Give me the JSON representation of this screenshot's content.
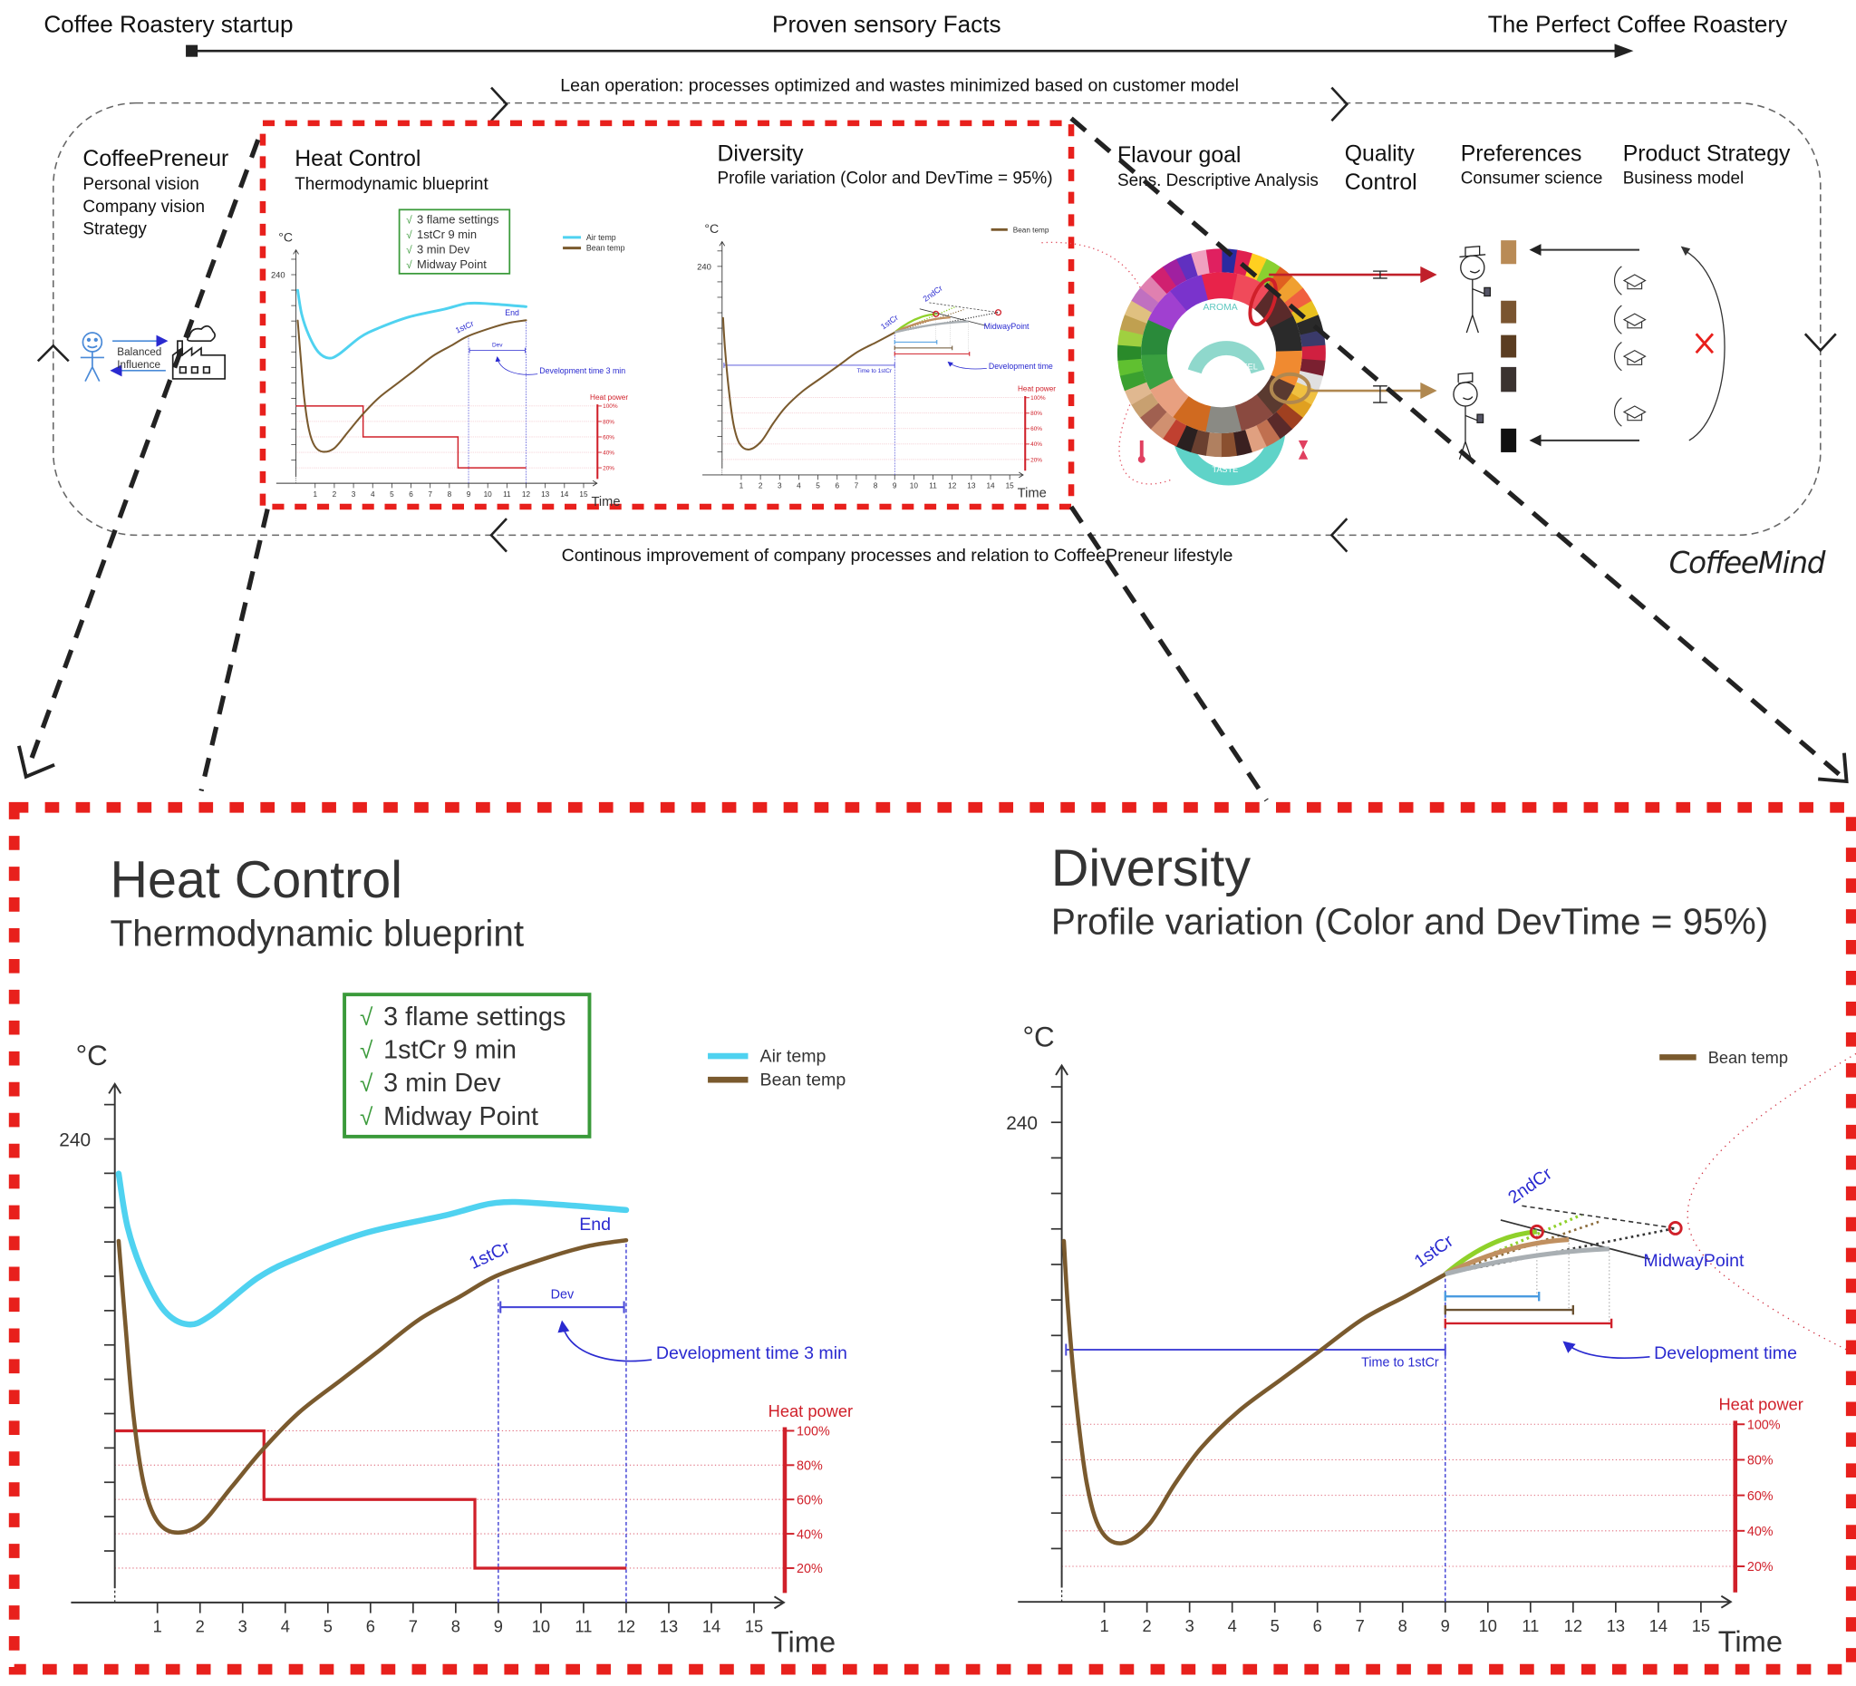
{
  "header": {
    "left": "Coffee Roastery startup",
    "center": "Proven sensory Facts",
    "right": "The Perfect Coffee Roastery"
  },
  "loop": {
    "top": "Lean operation: processes optimized and wastes minimized based on customer model",
    "bottom": "Continous improvement of company processes and relation to CoffeePreneur lifestyle"
  },
  "coffeepreneur": {
    "title": "CoffeePreneur",
    "lines": [
      "Personal vision",
      "Company vision",
      "Strategy"
    ],
    "influence": [
      "Balanced",
      "Influence"
    ]
  },
  "heat": {
    "title": "Heat Control",
    "subtitle": "Thermodynamic blueprint"
  },
  "diversity": {
    "title": "Diversity",
    "subtitle": "Profile variation (Color and DevTime = 95%)"
  },
  "flavour": {
    "title": "Flavour goal",
    "subtitle": "Sens. Descriptive Analysis"
  },
  "quality": {
    "title": [
      "Quality",
      "Control"
    ]
  },
  "preferences": {
    "title": "Preferences",
    "subtitle": "Consumer science"
  },
  "product": {
    "title": "Product Strategy",
    "subtitle": "Business model"
  },
  "wheel": {
    "labels": {
      "aroma": "AROMA",
      "mouthfeel": "MOUTHFEEL",
      "taste": "TASTE"
    },
    "inner_colors": [
      "#7a33cc",
      "#e8234a",
      "#f04a5a",
      "#5a2a2a",
      "#2a2a2a",
      "#f08a30",
      "#5a3a30",
      "#8a4a40",
      "#8a8a84",
      "#d06a20",
      "#e8a080",
      "#3aa040",
      "#2a8a3a",
      "#a040d0"
    ],
    "outer_colors": [
      "#2a2aa0",
      "#e02050",
      "#ffd020",
      "#8ad030",
      "#e06020",
      "#f0a030",
      "#f06040",
      "#e8c020",
      "#2a2a2a",
      "#3a3a6a",
      "#d02040",
      "#7a2030",
      "#e0e0e0",
      "#f0c040",
      "#e0a020",
      "#a04020",
      "#5a2a2a",
      "#c07050",
      "#e0a080",
      "#3a2020",
      "#8a5030",
      "#b08060",
      "#6a4030",
      "#2a2020",
      "#c04030",
      "#d09070",
      "#a06050",
      "#c8a070",
      "#e0b890",
      "#3aa030",
      "#60c030",
      "#2a8a2a",
      "#a0d040",
      "#c0a050",
      "#e0c080",
      "#c070c0",
      "#e080b0",
      "#d02070",
      "#a020a0",
      "#6030c0",
      "#f0a0c0",
      "#e02060"
    ],
    "taste_color": "#5fd3c8"
  },
  "swatches": [
    "#b98b56",
    "#7a5530",
    "#5b3d21",
    "#3b3330",
    "#111111"
  ],
  "logo": "CoffeeMind",
  "colors": {
    "frame_red": "#e8201c",
    "check_green": "#3a9a3a",
    "annotation_blue": "#2a2ad0",
    "heat_red": "#d0202a"
  },
  "chart_data": [
    {
      "type": "line",
      "title": "Heat Control",
      "ylabel": "°C",
      "xlabel": "Time",
      "y_tick_label": "240",
      "x_ticks": [
        1,
        2,
        3,
        4,
        5,
        6,
        7,
        8,
        9,
        10,
        11,
        12,
        13,
        14,
        15
      ],
      "xlim": [
        0,
        15.5
      ],
      "ylim": [
        105,
        250
      ],
      "checklist": [
        "3 flame settings",
        "1stCr 9 min",
        "3 min Dev",
        "Midway Point"
      ],
      "check_mark": "√",
      "series": [
        {
          "name": "Air temp",
          "color": "#4fd2f0",
          "points": [
            [
              0.09,
              229.9
            ],
            [
              0.3,
              214.3
            ],
            [
              0.67,
              200.8
            ],
            [
              1.16,
              190
            ],
            [
              1.71,
              186
            ],
            [
              2.25,
              188.6
            ],
            [
              3.35,
              199.5
            ],
            [
              4.32,
              205.5
            ],
            [
              5.91,
              212.7
            ],
            [
              7.74,
              217.7
            ],
            [
              8.95,
              221.4
            ],
            [
              10.17,
              221.1
            ],
            [
              12.0,
              219.3
            ]
          ]
        },
        {
          "name": "Bean temp",
          "color": "#7a5a2e",
          "points": [
            [
              0.09,
              210.3
            ],
            [
              0.24,
              187.3
            ],
            [
              0.43,
              160.3
            ],
            [
              0.67,
              140
            ],
            [
              0.97,
              129.2
            ],
            [
              1.4,
              125.4
            ],
            [
              2.01,
              127.8
            ],
            [
              2.74,
              138.6
            ],
            [
              3.47,
              149.5
            ],
            [
              4.32,
              160.3
            ],
            [
              5.3,
              169.7
            ],
            [
              6.15,
              177.8
            ],
            [
              7.13,
              187.3
            ],
            [
              8.1,
              194.1
            ],
            [
              8.95,
              200.1
            ],
            [
              10.17,
              205.5
            ],
            [
              11.15,
              208.9
            ],
            [
              12.0,
              210.5
            ]
          ]
        }
      ],
      "heat_power": {
        "label": "Heat power",
        "ticks": [
          "100%",
          "80%",
          "60%",
          "40%",
          "20%"
        ],
        "levels": [
          100,
          80,
          60,
          40,
          20
        ],
        "steps": [
          [
            0,
            3.5,
            100
          ],
          [
            3.5,
            8.45,
            60
          ],
          [
            8.45,
            12,
            20
          ]
        ]
      },
      "first_crack_time": 9,
      "end_time": 12,
      "annotations": {
        "first_crack": "1stCr",
        "end": "End",
        "dev": "Dev",
        "dev_time": "Development time 3 min"
      }
    },
    {
      "type": "line",
      "title": "Diversity",
      "ylabel": "°C",
      "xlabel": "Time",
      "y_tick_label": "240",
      "x_ticks": [
        1,
        2,
        3,
        4,
        5,
        6,
        7,
        8,
        9,
        10,
        11,
        12,
        13,
        14,
        15
      ],
      "xlim": [
        0,
        15.5
      ],
      "ylim": [
        105,
        250
      ],
      "series": [
        {
          "name": "Bean temp",
          "color": "#7a5a2e",
          "points": [
            [
              0.05,
              206.6
            ],
            [
              0.15,
              187
            ],
            [
              0.34,
              161.3
            ],
            [
              0.59,
              138.2
            ],
            [
              0.91,
              125.3
            ],
            [
              1.41,
              121.5
            ],
            [
              2.04,
              126.7
            ],
            [
              2.66,
              138.3
            ],
            [
              3.29,
              148.6
            ],
            [
              4.17,
              158.9
            ],
            [
              5.18,
              167.9
            ],
            [
              6.05,
              175.6
            ],
            [
              7.06,
              184.6
            ],
            [
              8.06,
              191
            ],
            [
              9.01,
              197.3
            ]
          ]
        }
      ],
      "branches": [
        {
          "color": "#8fd12a",
          "end": [
            11.15,
            209.2
          ]
        },
        {
          "color": "#c09060",
          "end": [
            11.9,
            207
          ]
        },
        {
          "color": "#a9afb3",
          "end": [
            12.85,
            204.4
          ]
        }
      ],
      "midway_points": [
        [
          11.15,
          209.2
        ],
        [
          14.4,
          210.2
        ]
      ],
      "dev_bars": [
        {
          "from": 9,
          "to": 11.2,
          "color": "#4a9be0"
        },
        {
          "from": 9,
          "to": 12,
          "color": "#6b5232"
        },
        {
          "from": 9,
          "to": 12.9,
          "color": "#d0202a"
        }
      ],
      "time_to_first_crack": [
        0,
        9
      ],
      "heat_power": {
        "label": "Heat power",
        "ticks": [
          "100%",
          "80%",
          "60%",
          "40%",
          "20%"
        ],
        "levels": [
          100,
          80,
          60,
          40,
          20
        ]
      },
      "first_crack_time": 9,
      "annotations": {
        "first_crack": "1stCr",
        "second_crack": "2ndCr",
        "midway": "MidwayPoint",
        "time_to_first_crack": "Time to 1stCr",
        "dev_time": "Development time"
      }
    }
  ]
}
